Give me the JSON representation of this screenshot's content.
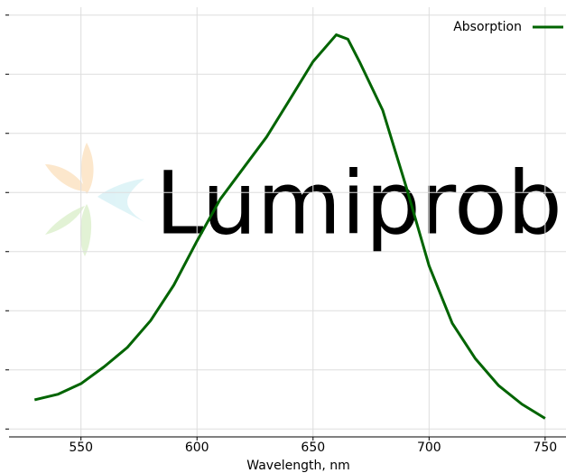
{
  "chart_data": {
    "type": "line",
    "xlabel": "Wavelength, nm",
    "watermark": "Lumiprobe",
    "x": [
      530,
      540,
      550,
      560,
      570,
      580,
      590,
      600,
      610,
      620,
      630,
      640,
      650,
      660,
      665,
      670,
      680,
      690,
      700,
      710,
      720,
      730,
      740,
      750
    ],
    "series": [
      {
        "name": "Absorption",
        "color": "#006400",
        "values": [
          0.074,
          0.088,
          0.115,
          0.158,
          0.207,
          0.275,
          0.365,
          0.477,
          0.583,
          0.662,
          0.741,
          0.836,
          0.932,
          1.0,
          0.989,
          0.932,
          0.809,
          0.617,
          0.414,
          0.268,
          0.178,
          0.11,
          0.063,
          0.027
        ]
      }
    ],
    "xlim": [
      519,
      759
    ],
    "xticks": [
      550,
      600,
      650,
      700,
      750
    ],
    "ylim": [
      -0.02,
      1.07
    ],
    "yticks": [
      0,
      0.15,
      0.3,
      0.45,
      0.6,
      0.75,
      0.9,
      1.05
    ],
    "grid": true,
    "legend": "upper right"
  }
}
